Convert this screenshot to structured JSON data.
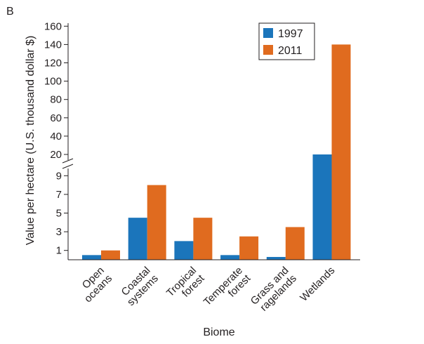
{
  "panel_label": "B",
  "colors": {
    "1997": "#1b75bb",
    "2011": "#e06b1f",
    "axis": "#231f20"
  },
  "chart_data": {
    "type": "bar",
    "title": "",
    "xlabel": "Biome",
    "ylabel": "Value per hectare (U.S. thousand dollar $)",
    "categories": [
      [
        "Open",
        "oceans"
      ],
      [
        "Coastal",
        "systems"
      ],
      [
        "Tropical",
        "forest"
      ],
      [
        "Temperate",
        "forest"
      ],
      [
        "Grass and",
        "ragelands"
      ],
      [
        "Wetlands"
      ]
    ],
    "series": [
      {
        "name": "1997",
        "values": [
          0.5,
          4.5,
          2.0,
          0.5,
          0.3,
          20.0
        ]
      },
      {
        "name": "2011",
        "values": [
          1.0,
          8.0,
          4.5,
          2.5,
          3.5,
          140.0
        ]
      }
    ],
    "y_axis": {
      "broken": true,
      "lower_ticks": [
        1,
        3,
        5,
        7,
        9
      ],
      "upper_ticks": [
        20,
        40,
        60,
        80,
        100,
        120,
        140,
        160
      ],
      "ylim": [
        0,
        160
      ]
    },
    "legend_placement": "top-right",
    "grid": false
  }
}
